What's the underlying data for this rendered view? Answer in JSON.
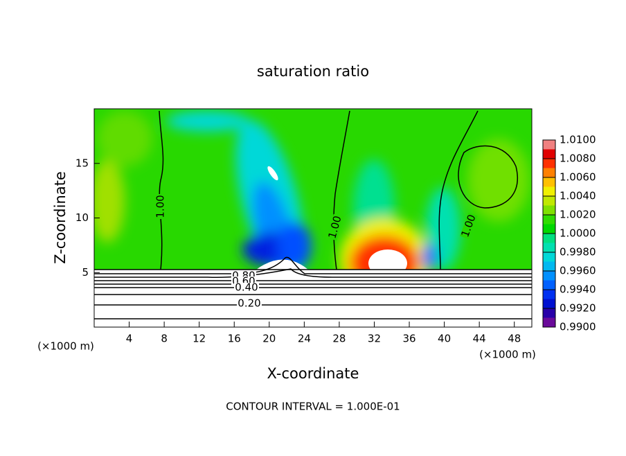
{
  "chart_data": {
    "type": "contour",
    "title": "saturation ratio",
    "xlabel": "X-coordinate",
    "ylabel": "Z-coordinate",
    "x_unit_left": "(×1000 m)",
    "x_unit_right": "(×1000 m)",
    "footer": "CONTOUR INTERVAL = 1.000E-01",
    "xlim": [
      0,
      50
    ],
    "xticks": [
      4,
      8,
      12,
      16,
      20,
      24,
      28,
      32,
      36,
      40,
      44,
      48
    ],
    "ylim": [
      0,
      20
    ],
    "yticks": [
      5,
      10,
      15
    ],
    "contour_labels": [
      "1.00",
      "1.00",
      "1.00",
      "0.80",
      "0.60",
      "0.40",
      "0.20"
    ],
    "clim": [
      0.99,
      1.01
    ],
    "cticks": [
      {
        "value": 0.99,
        "label": "0.9900"
      },
      {
        "value": 0.992,
        "label": "0.9920"
      },
      {
        "value": 0.994,
        "label": "0.9940"
      },
      {
        "value": 0.996,
        "label": "0.9960"
      },
      {
        "value": 0.998,
        "label": "0.9980"
      },
      {
        "value": 1.0,
        "label": "1.0000"
      },
      {
        "value": 1.002,
        "label": "1.0020"
      },
      {
        "value": 1.004,
        "label": "1.0040"
      },
      {
        "value": 1.006,
        "label": "1.0060"
      },
      {
        "value": 1.008,
        "label": "1.0080"
      },
      {
        "value": 1.01,
        "label": "1.0100"
      }
    ],
    "colormap": [
      "#6a0a9a",
      "#2800a8",
      "#0010d0",
      "#0030f0",
      "#0060ff",
      "#0090ff",
      "#00b8f0",
      "#00d8d8",
      "#00e0b0",
      "#00e080",
      "#00d800",
      "#30dc00",
      "#80e000",
      "#c0e800",
      "#f0f000",
      "#ffc000",
      "#ff8000",
      "#ff3000",
      "#e00000",
      "#f08080"
    ]
  }
}
